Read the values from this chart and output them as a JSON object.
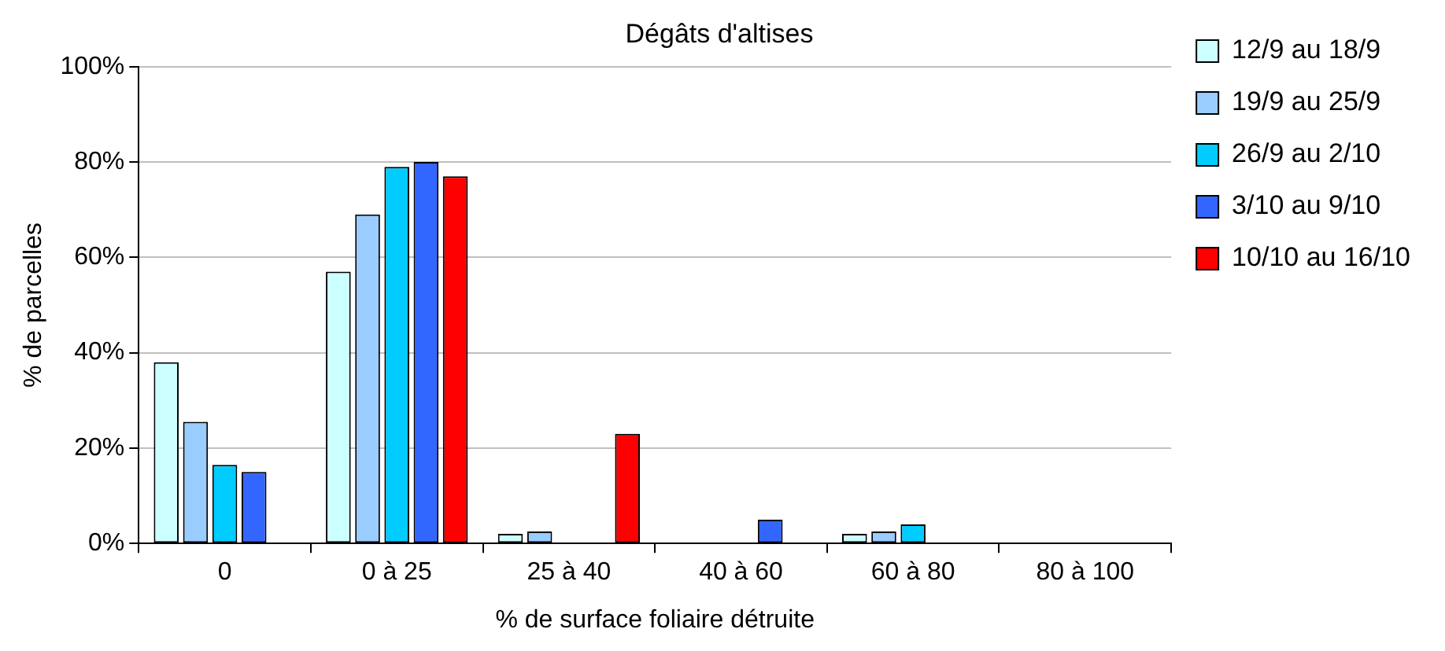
{
  "chart_data": {
    "type": "bar",
    "title": "Dégâts d'altises",
    "xlabel": "% de surface foliaire détruite",
    "ylabel": "% de parcelles",
    "categories": [
      "0",
      "0 à 25",
      "25 à 40",
      "40 à 60",
      "60 à 80",
      "80 à 100"
    ],
    "series": [
      {
        "name": "12/9 au 18/9",
        "color": "#ccffff",
        "values": [
          38,
          57,
          2,
          null,
          2,
          null
        ]
      },
      {
        "name": "19/9 au 25/9",
        "color": "#99ccff",
        "values": [
          25.5,
          69,
          2.5,
          null,
          2.5,
          null
        ]
      },
      {
        "name": "26/9 au 2/10",
        "color": "#00ccff",
        "values": [
          16.5,
          79,
          null,
          null,
          4,
          null
        ]
      },
      {
        "name": "3/10 au 9/10",
        "color": "#3366ff",
        "values": [
          15,
          80,
          null,
          5,
          null,
          null
        ]
      },
      {
        "name": "10/10 au 16/10",
        "color": "#ff0000",
        "values": [
          null,
          77,
          23,
          null,
          null,
          null
        ]
      }
    ],
    "ylim": [
      0,
      100
    ],
    "yticks": [
      {
        "value": 0,
        "label": "0%"
      },
      {
        "value": 20,
        "label": "20%"
      },
      {
        "value": 40,
        "label": "40%"
      },
      {
        "value": 60,
        "label": "60%"
      },
      {
        "value": 80,
        "label": "80%"
      },
      {
        "value": 100,
        "label": "100%"
      }
    ],
    "grid": "y",
    "legend": "top right"
  }
}
